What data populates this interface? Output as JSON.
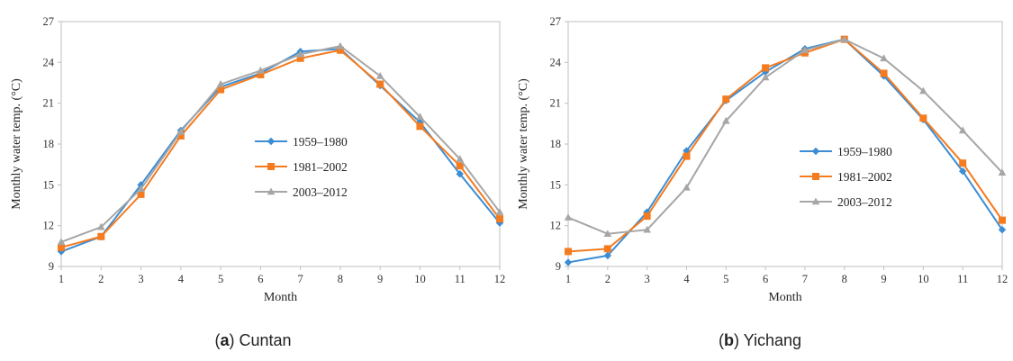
{
  "chart_data": [
    {
      "type": "line",
      "panel_letter": "a",
      "panel_name": "Cuntan",
      "xlabel": "Month",
      "ylabel": "Monthly water temp. (°C)",
      "x": [
        1,
        2,
        3,
        4,
        5,
        6,
        7,
        8,
        9,
        10,
        11,
        12
      ],
      "ylim": [
        9,
        27
      ],
      "yticks": [
        9,
        12,
        15,
        18,
        21,
        24,
        27
      ],
      "grid": false,
      "legend_position": "center",
      "series": [
        {
          "name": "1959–1980",
          "color": "#3c8dd3",
          "marker": "diamond",
          "values": [
            10.1,
            11.2,
            15.0,
            19.0,
            22.2,
            23.2,
            24.8,
            25.0,
            22.3,
            19.6,
            15.8,
            12.2
          ]
        },
        {
          "name": "1981–2002",
          "color": "#f47b20",
          "marker": "square",
          "values": [
            10.4,
            11.2,
            14.3,
            18.6,
            22.0,
            23.1,
            24.3,
            24.9,
            22.4,
            19.3,
            16.4,
            12.5
          ]
        },
        {
          "name": "2003–2012",
          "color": "#a6a6a6",
          "marker": "triangle",
          "values": [
            10.8,
            11.9,
            14.7,
            18.9,
            22.4,
            23.4,
            24.6,
            25.2,
            23.0,
            20.0,
            16.9,
            13.0
          ]
        }
      ]
    },
    {
      "type": "line",
      "panel_letter": "b",
      "panel_name": "Yichang",
      "xlabel": "Month",
      "ylabel": "Monthly water temp. (°C)",
      "x": [
        1,
        2,
        3,
        4,
        5,
        6,
        7,
        8,
        9,
        10,
        11,
        12
      ],
      "ylim": [
        9,
        27
      ],
      "yticks": [
        9,
        12,
        15,
        18,
        21,
        24,
        27
      ],
      "grid": false,
      "legend_position": "center-right",
      "series": [
        {
          "name": "1959–1980",
          "color": "#3c8dd3",
          "marker": "diamond",
          "values": [
            9.3,
            9.8,
            13.0,
            17.5,
            21.2,
            23.3,
            25.0,
            25.7,
            23.0,
            19.8,
            16.0,
            11.7
          ]
        },
        {
          "name": "1981–2002",
          "color": "#f47b20",
          "marker": "square",
          "values": [
            10.1,
            10.3,
            12.7,
            17.1,
            21.3,
            23.6,
            24.7,
            25.7,
            23.2,
            19.9,
            16.6,
            12.4
          ]
        },
        {
          "name": "2003–2012",
          "color": "#a6a6a6",
          "marker": "triangle",
          "values": [
            12.6,
            11.4,
            11.7,
            14.8,
            19.7,
            22.9,
            24.9,
            25.7,
            24.3,
            21.9,
            19.0,
            15.9
          ]
        }
      ]
    }
  ]
}
